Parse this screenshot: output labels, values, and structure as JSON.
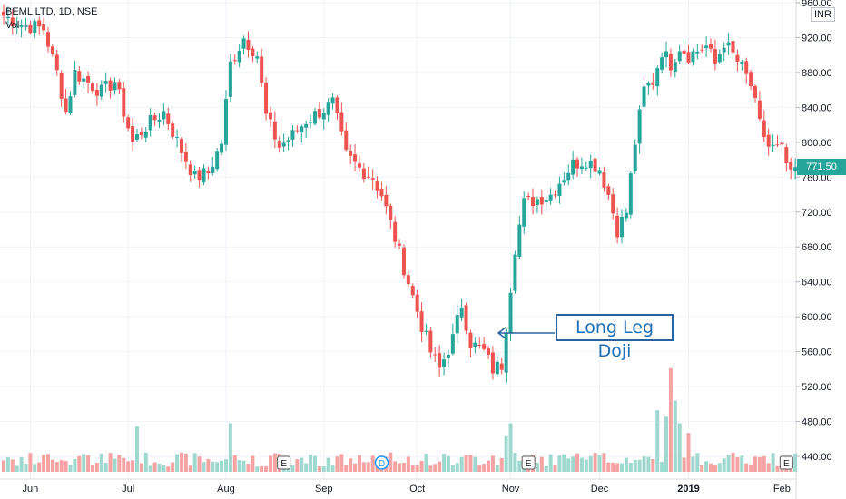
{
  "legend": {
    "title": "BEML LTD, 1D, NSE",
    "vol_label": "Vol"
  },
  "unit_label": "INR",
  "last_price_label": "771.50",
  "annotation_text": "Long Leg Doji",
  "colors": {
    "up": "#26a69a",
    "down": "#ef5350",
    "vol_up": "#9fd8cf",
    "vol_down": "#f5a3a3",
    "arrow": "#2962a0"
  },
  "chart_data": {
    "type": "candlestick",
    "ylim": [
      440,
      960
    ],
    "yticks": [
      440,
      480,
      520,
      560,
      600,
      640,
      680,
      720,
      760,
      800,
      840,
      880,
      920,
      960
    ],
    "ytick_labels": [
      "440.00",
      "480.00",
      "520.00",
      "560.00",
      "600.00",
      "640.00",
      "680.00",
      "720.00",
      "760.00",
      "800.00",
      "840.00",
      "880.00",
      "920.00",
      "960.00"
    ],
    "x_labels": [
      "Jun",
      "Jul",
      "Aug",
      "Sep",
      "Oct",
      "Nov",
      "Dec",
      "2019",
      "Feb"
    ],
    "x_label_index": [
      6,
      28,
      50,
      72,
      93,
      114,
      134,
      154,
      175
    ],
    "events": [
      {
        "label": "E",
        "index": 63
      },
      {
        "label": "D",
        "index": 85
      },
      {
        "label": "E",
        "index": 118
      },
      {
        "label": "E",
        "index": 176
      }
    ],
    "close_anchors": [
      [
        0,
        945
      ],
      [
        4,
        935
      ],
      [
        9,
        930
      ],
      [
        12,
        880
      ],
      [
        14,
        835
      ],
      [
        16,
        880
      ],
      [
        19,
        868
      ],
      [
        22,
        858
      ],
      [
        25,
        870
      ],
      [
        29,
        800
      ],
      [
        32,
        818
      ],
      [
        36,
        835
      ],
      [
        40,
        790
      ],
      [
        43,
        760
      ],
      [
        46,
        765
      ],
      [
        49,
        800
      ],
      [
        51,
        890
      ],
      [
        54,
        920
      ],
      [
        57,
        900
      ],
      [
        59,
        830
      ],
      [
        62,
        795
      ],
      [
        65,
        808
      ],
      [
        68,
        825
      ],
      [
        71,
        835
      ],
      [
        74,
        845
      ],
      [
        77,
        785
      ],
      [
        80,
        770
      ],
      [
        83,
        760
      ],
      [
        85,
        740
      ],
      [
        88,
        690
      ],
      [
        91,
        640
      ],
      [
        94,
        590
      ],
      [
        96,
        560
      ],
      [
        98,
        540
      ],
      [
        101,
        575
      ],
      [
        103,
        615
      ],
      [
        105,
        570
      ],
      [
        108,
        560
      ],
      [
        110,
        540
      ],
      [
        112,
        545
      ],
      [
        113,
        590
      ],
      [
        115,
        680
      ],
      [
        117,
        730
      ],
      [
        120,
        735
      ],
      [
        123,
        740
      ],
      [
        125,
        755
      ],
      [
        128,
        775
      ],
      [
        131,
        780
      ],
      [
        134,
        770
      ],
      [
        136,
        740
      ],
      [
        138,
        700
      ],
      [
        140,
        720
      ],
      [
        142,
        800
      ],
      [
        144,
        860
      ],
      [
        146,
        870
      ],
      [
        148,
        905
      ],
      [
        150,
        890
      ],
      [
        152,
        910
      ],
      [
        154,
        900
      ],
      [
        156,
        905
      ],
      [
        158,
        910
      ],
      [
        160,
        890
      ],
      [
        162,
        915
      ],
      [
        164,
        900
      ],
      [
        166,
        885
      ],
      [
        168,
        865
      ],
      [
        170,
        820
      ],
      [
        172,
        795
      ],
      [
        175,
        790
      ],
      [
        177,
        760
      ],
      [
        178,
        771.5
      ]
    ],
    "volume_range": [
      0,
      110
    ],
    "volume_highlights": [
      [
        30,
        70
      ],
      [
        51,
        75
      ],
      [
        113,
        55
      ],
      [
        114,
        75
      ],
      [
        147,
        95
      ],
      [
        149,
        85
      ],
      [
        150,
        160
      ],
      [
        151,
        110
      ],
      [
        152,
        75
      ],
      [
        154,
        60
      ]
    ]
  }
}
